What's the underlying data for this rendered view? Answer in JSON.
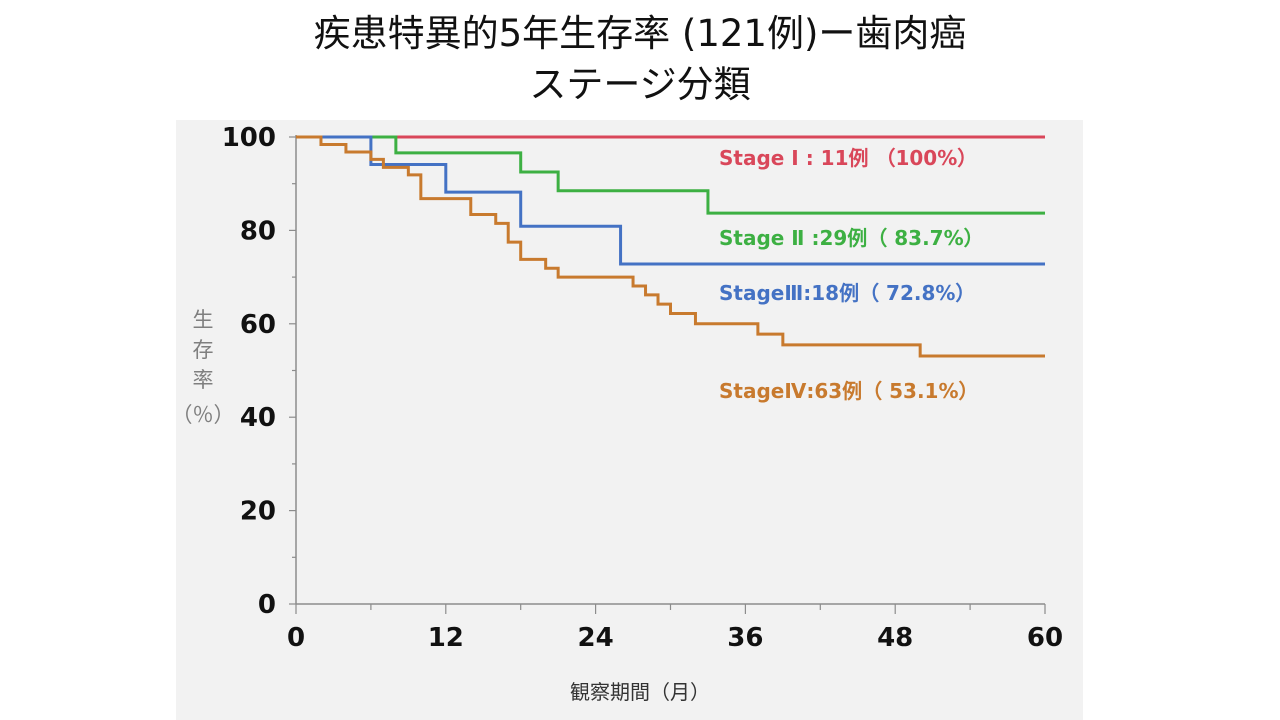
{
  "title": {
    "line1": "疾患特異的5年生存率 (121例)ー歯肉癌",
    "line2": "ステージ分類"
  },
  "chart_data": {
    "type": "line",
    "step": true,
    "xlabel": "観察期間（月）",
    "ylabel_chars": [
      "生",
      "存",
      "率",
      "（％）"
    ],
    "xlim": [
      0,
      60
    ],
    "ylim": [
      0,
      100
    ],
    "xticks": [
      0,
      12,
      24,
      36,
      48,
      60
    ],
    "yticks": [
      0,
      20,
      40,
      60,
      80,
      100
    ],
    "grid": false,
    "series": [
      {
        "name": "Stage Ⅰ : 11例 （100%）",
        "color": "#d9475a",
        "x": [
          0,
          60
        ],
        "y": [
          100,
          100
        ]
      },
      {
        "name": "Stage Ⅱ :29例（ 83.7%）",
        "color": "#3db043",
        "x": [
          0,
          8,
          18,
          21,
          33,
          60
        ],
        "y": [
          100,
          96.6,
          92.5,
          88.5,
          83.7,
          83.7
        ]
      },
      {
        "name": "StageⅢ:18例（ 72.8%）",
        "color": "#4472c4",
        "x": [
          0,
          6,
          12,
          18,
          26,
          60
        ],
        "y": [
          100,
          94.1,
          88.2,
          80.9,
          72.8,
          72.8
        ]
      },
      {
        "name": "StageⅣ:63例（ 53.1%）",
        "color": "#c87a2e",
        "x": [
          0,
          2,
          4,
          6,
          7,
          9,
          10,
          14,
          16,
          17,
          18,
          20,
          21,
          27,
          28,
          29,
          30,
          32,
          37,
          39,
          50,
          60
        ],
        "y": [
          100,
          98.4,
          96.8,
          95.2,
          93.5,
          91.9,
          86.8,
          83.4,
          81.5,
          77.5,
          73.8,
          71.9,
          70.0,
          68.1,
          66.2,
          64.2,
          62.2,
          60.0,
          57.8,
          55.5,
          53.1,
          53.1
        ]
      }
    ]
  }
}
